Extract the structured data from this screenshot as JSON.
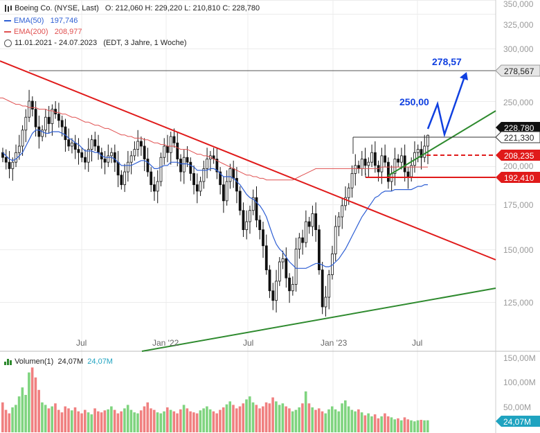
{
  "header": {
    "title_line": "Boeing Co. (NYSE, Last)",
    "ohlc": "O: 212,060  H: 229,220  L: 210,810  C: 228,780",
    "ema50_label": "EMA(50)",
    "ema50_value": "197,746",
    "ema200_label": "EMA(200)",
    "ema200_value": "208,977",
    "range_text": "11.01.2021 - 24.07.2023",
    "range_meta": "(EDT, 3 Jahre, 1 Woche)"
  },
  "colors": {
    "ema50": "#2e5fd4",
    "ema200": "#e05050",
    "downtrend": "#e01a1a",
    "uptrend": "#2e8a2e",
    "forecast": "#1040e0",
    "vol_up": "#7fd47f",
    "vol_down": "#f08080",
    "volume_tag": "#1fa3c0"
  },
  "price_axis": {
    "ticks": [
      "350,000",
      "325,000",
      "300,000",
      "278,567",
      "250,000",
      "228,780",
      "221,330",
      "208,235",
      "200,000",
      "192,410",
      "175,000",
      "150,000",
      "125,000"
    ]
  },
  "time_axis": {
    "labels": [
      "Jul",
      "Jan '22",
      "Jul",
      "Jan '23",
      "Jul"
    ]
  },
  "annotations": {
    "target_1": "250,00",
    "target_2": "278,57"
  },
  "price_tags": [
    {
      "label": "278,567",
      "style": "gray"
    },
    {
      "label": "228,780",
      "style": "black"
    },
    {
      "label": "221,330",
      "style": "outline"
    },
    {
      "label": "208,235",
      "style": "red"
    },
    {
      "label": "192,410",
      "style": "red"
    }
  ],
  "volume_panel": {
    "title": "Volumen(1)",
    "value_1": "24,07M",
    "value_2": "24,07M",
    "ticks": [
      "150,00M",
      "100,00M",
      "50,00M"
    ],
    "last_tag": "24,07M"
  },
  "chart_data": {
    "type": "candlestick",
    "title": "Boeing Co. (NYSE, Last)",
    "x_range": [
      "11.01.2021",
      "24.07.2023"
    ],
    "ylim": [
      105,
      352
    ],
    "last_candle": {
      "open": 212.06,
      "high": 229.22,
      "low": 210.81,
      "close": 228.78
    },
    "weekly_close": [
      215,
      212,
      208,
      212,
      218,
      222,
      232,
      240,
      250,
      245,
      234,
      228,
      232,
      240,
      236,
      245,
      242,
      238,
      234,
      226,
      222,
      224,
      220,
      218,
      215,
      212,
      220,
      226,
      222,
      218,
      214,
      212,
      216,
      218,
      212,
      204,
      198,
      206,
      212,
      216,
      220,
      225,
      222,
      214,
      206,
      198,
      194,
      200,
      215,
      222,
      218,
      228,
      224,
      214,
      206,
      215,
      212,
      205,
      198,
      194,
      200,
      208,
      214,
      216,
      214,
      206,
      198,
      188,
      200,
      208,
      202,
      194,
      182,
      170,
      175,
      182,
      190,
      176,
      170,
      160,
      145,
      132,
      126,
      138,
      150,
      152,
      140,
      132,
      136,
      158,
      165,
      162,
      175,
      172,
      180,
      170,
      145,
      122,
      128,
      142,
      155,
      172,
      178,
      185,
      190,
      196,
      205,
      210,
      208,
      214,
      210,
      212,
      218,
      210,
      206,
      216,
      212,
      200,
      205,
      214,
      212,
      216,
      206,
      203,
      210,
      218,
      220,
      215,
      222,
      228.78
    ],
    "ema50": [
      218,
      216,
      214,
      213,
      214,
      216,
      218,
      222,
      226,
      230,
      232,
      232,
      231,
      230,
      230,
      231,
      231,
      231,
      230,
      229,
      227,
      226,
      224,
      223,
      221,
      219,
      219,
      219,
      218,
      218,
      216,
      215,
      215,
      215,
      214,
      212,
      210,
      210,
      210,
      210,
      211,
      212,
      213,
      213,
      212,
      210,
      208,
      208,
      209,
      210,
      210,
      212,
      212,
      212,
      211,
      211,
      211,
      210,
      209,
      207,
      207,
      207,
      207,
      208,
      208,
      207,
      205,
      203,
      203,
      203,
      202,
      200,
      198,
      195,
      192,
      190,
      189,
      187,
      185,
      182,
      178,
      172,
      166,
      161,
      158,
      156,
      153,
      150,
      148,
      146,
      146,
      146,
      146,
      147,
      148,
      149,
      149,
      148,
      147,
      147,
      148,
      150,
      152,
      155,
      158,
      162,
      166,
      170,
      174,
      178,
      181,
      184,
      187,
      190,
      191,
      193,
      194,
      194,
      194,
      195,
      195,
      195,
      195,
      195,
      195,
      196,
      197,
      197,
      198,
      198
    ],
    "ema200": [
      252,
      251,
      250,
      249,
      248,
      248,
      247,
      247,
      246,
      246,
      246,
      245,
      245,
      245,
      244,
      244,
      243,
      243,
      242,
      242,
      241,
      240,
      240,
      239,
      238,
      237,
      237,
      236,
      235,
      235,
      234,
      233,
      233,
      232,
      231,
      230,
      229,
      229,
      228,
      228,
      227,
      227,
      227,
      226,
      226,
      225,
      224,
      224,
      223,
      223,
      222,
      222,
      222,
      221,
      220,
      220,
      220,
      219,
      218,
      217,
      217,
      216,
      216,
      215,
      214,
      213,
      212,
      211,
      210,
      209,
      208,
      207,
      206,
      205,
      204,
      204,
      203,
      203,
      202,
      202,
      201,
      201,
      201,
      201,
      201,
      201,
      201,
      201,
      201,
      202,
      203,
      204,
      205,
      206,
      207,
      208,
      208,
      208,
      208,
      208,
      208,
      208,
      208,
      208,
      208,
      208,
      208,
      208,
      208,
      208,
      208,
      208,
      208,
      208,
      208,
      209,
      209,
      209,
      209,
      209,
      209,
      209,
      209,
      209,
      209,
      209,
      209,
      209,
      209,
      209
    ],
    "horizontal_levels": [
      278.567,
      228.78,
      221.33,
      208.235,
      192.41
    ],
    "volume_millions": [
      60,
      45,
      38,
      50,
      55,
      72,
      90,
      75,
      120,
      130,
      110,
      85,
      60,
      55,
      48,
      52,
      58,
      45,
      40,
      52,
      48,
      44,
      50,
      42,
      38,
      45,
      40,
      36,
      48,
      42,
      40,
      44,
      46,
      52,
      45,
      38,
      42,
      48,
      55,
      45,
      40,
      38,
      44,
      52,
      60,
      48,
      45,
      40,
      38,
      42,
      50,
      45,
      42,
      38,
      46,
      55,
      48,
      42,
      40,
      38,
      44,
      48,
      52,
      46,
      42,
      38,
      45,
      50,
      56,
      62,
      55,
      48,
      52,
      58,
      66,
      72,
      60,
      55,
      48,
      52,
      60,
      58,
      70,
      62,
      55,
      58,
      52,
      48,
      42,
      45,
      50,
      58,
      82,
      58,
      50,
      45,
      48,
      42,
      38,
      46,
      52,
      46,
      42,
      58,
      64,
      52,
      45,
      42,
      46,
      40,
      34,
      38,
      32,
      36,
      28,
      32,
      38,
      32,
      30,
      26,
      28,
      24,
      30,
      26,
      24,
      22,
      24,
      25,
      24,
      24.07
    ]
  }
}
